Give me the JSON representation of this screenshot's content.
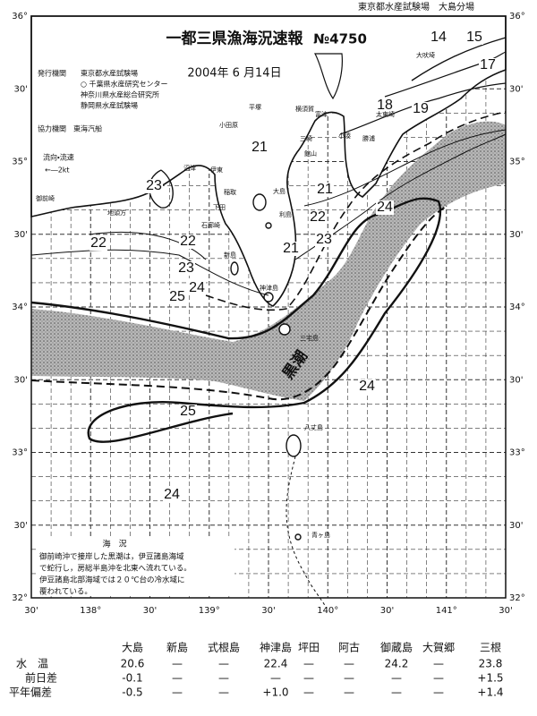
{
  "header": {
    "agency_top": "東京都水産試験場　大島分場",
    "title": "一都三県漁海況速報",
    "number": "№4750",
    "date": "2004年 6 月14日"
  },
  "issuers": {
    "label": "発行機関",
    "list": [
      "東京都水産試験場",
      "○ 千葉県水産研究センター",
      "神奈川県水産総合研究所",
      "静岡県水産試験場"
    ],
    "cooperation": "協力機関　東海汽船"
  },
  "current_legend": {
    "label": "流向・流速",
    "scale": "←―2kt"
  },
  "latitudes": [
    "36°",
    "30'",
    "35°",
    "30'",
    "34°",
    "30'",
    "33°",
    "30'",
    "32°"
  ],
  "longitudes": [
    "30'",
    "138°",
    "30'",
    "139°",
    "30'",
    "140°",
    "30'",
    "141°",
    "30'"
  ],
  "isotherms": [
    14,
    15,
    17,
    18,
    19,
    21,
    23,
    21,
    24,
    22,
    22,
    22,
    21,
    23,
    23,
    24,
    25,
    24,
    25,
    24
  ],
  "kuroshio": "黒潮",
  "places": [
    "大吠埼",
    "平塚",
    "横須賀",
    "富津",
    "小田原",
    "三崎",
    "館山",
    "小湊",
    "勝浦",
    "太東崎",
    "沼津",
    "伊東",
    "稲取",
    "下田",
    "石廊崎",
    "御前崎",
    "地頭方",
    "大島",
    "利島",
    "新島",
    "神津島",
    "三宅島",
    "八丈島",
    "青ヶ島"
  ],
  "note": {
    "title": "海　況",
    "lines": [
      "御前崎沖で接岸した黒潮は，伊豆諸島海域",
      "で蛇行し，房総半島沖を北東へ流れている。",
      "伊豆諸島北部海域では２０℃台の冷水域に",
      "覆われている。"
    ]
  },
  "table": {
    "columns": [
      "大島",
      "新島",
      "式根島",
      "神津島",
      "坪田",
      "阿古",
      "御蔵島",
      "大賀郷",
      "三根"
    ],
    "rows": [
      {
        "label": "水　温",
        "values": [
          "20.6",
          "—",
          "—",
          "22.4",
          "—",
          "—",
          "24.2",
          "—",
          "23.8"
        ]
      },
      {
        "label": "前日差",
        "values": [
          "-0.1",
          "—",
          "—",
          "—",
          "—",
          "—",
          "—",
          "—",
          "+1.5"
        ]
      },
      {
        "label": "平年偏差",
        "values": [
          "-0.5",
          "—",
          "—",
          "+1.0",
          "—",
          "—",
          "—",
          "—",
          "+1.4"
        ]
      }
    ]
  }
}
